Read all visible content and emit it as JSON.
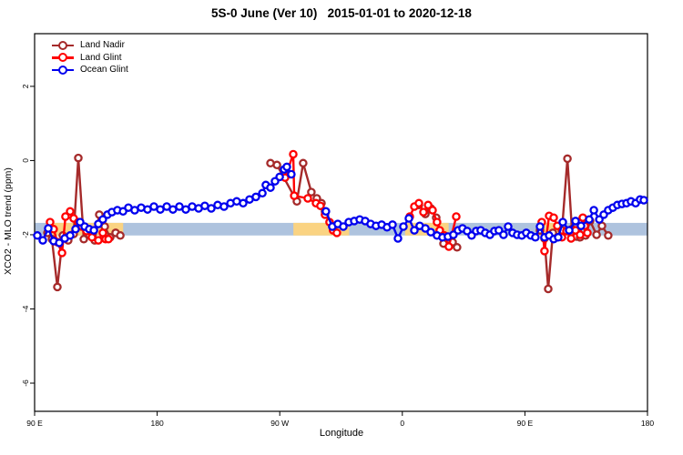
{
  "chart_data": {
    "type": "line",
    "title": "5S-0 June (Ver 10)   2015-01-01 to 2020-12-18",
    "xlabel": "Longitude",
    "ylabel": "XCO2 - MLO trend (ppm)",
    "xlim": [
      0,
      450
    ],
    "ylim": [
      -6.76,
      3.42
    ],
    "grid": "off",
    "legend_position": "top-left",
    "x_ticks": [
      {
        "pos": 0,
        "label": "90 E"
      },
      {
        "pos": 90,
        "label": "180"
      },
      {
        "pos": 180,
        "label": "90 W"
      },
      {
        "pos": 270,
        "label": "0"
      },
      {
        "pos": 360,
        "label": "90 E"
      },
      {
        "pos": 450,
        "label": "180"
      }
    ],
    "y_ticks": [
      2,
      0,
      -2,
      -4,
      -6
    ],
    "hline_band": {
      "y_from": -1.68,
      "y_to": -2.02,
      "color": "#AEC3DE",
      "note": "ocean reference band"
    },
    "band_overlay_color": "#FAD382",
    "band_overlays": [
      {
        "x_from": 10,
        "x_to": 65
      },
      {
        "x_from": 190,
        "x_to": 231
      },
      {
        "x_from": 272,
        "x_to": 304
      },
      {
        "x_from": 369,
        "x_to": 386
      }
    ],
    "series": [
      {
        "name": "Land Nadir",
        "color": "#A52A2A",
        "marker": "open-circle",
        "segments": [
          [
            [
              9.4,
              -1.95
            ],
            [
              12.7,
              -2.12
            ],
            [
              16.7,
              -3.41
            ],
            [
              20.7,
              -2.02
            ],
            [
              24.7,
              -2.15
            ],
            [
              28.7,
              -1.98
            ],
            [
              32.1,
              0.07
            ],
            [
              36.1,
              -2.12
            ],
            [
              40.1,
              -2.0
            ],
            [
              44.1,
              -2.15
            ],
            [
              47.5,
              -1.46
            ],
            [
              51.5,
              -1.78
            ],
            [
              55.5,
              -2.07
            ],
            [
              59.5,
              -1.95
            ],
            [
              62.9,
              -2.02
            ]
          ],
          [
            [
              173.2,
              -0.07
            ],
            [
              177.9,
              -0.12
            ],
            [
              192.6,
              -1.1
            ],
            [
              197.2,
              -0.07
            ],
            [
              203.2,
              -0.85
            ],
            [
              207.2,
              -1.02
            ],
            [
              210.6,
              -1.15
            ],
            [
              213.2,
              -1.37
            ]
          ],
          [
            [
              282.2,
              -1.2
            ],
            [
              286.9,
              -1.44
            ],
            [
              290.9,
              -1.29
            ],
            [
              294.9,
              -1.54
            ],
            [
              300.2,
              -2.24
            ],
            [
              306.9,
              -2.2
            ],
            [
              310.2,
              -2.34
            ]
          ],
          [
            [
              371.1,
              -1.88
            ],
            [
              374.4,
              -2.1
            ],
            [
              377.1,
              -3.46
            ],
            [
              380.5,
              -1.95
            ],
            [
              383.8,
              -2.07
            ],
            [
              387.2,
              -1.88
            ],
            [
              391.2,
              0.05
            ],
            [
              394.5,
              -1.85
            ],
            [
              397.9,
              -2.05
            ],
            [
              400.5,
              -2.07
            ],
            [
              404.5,
              -2.02
            ],
            [
              407.9,
              -1.63
            ],
            [
              412.6,
              -2.0
            ],
            [
              416.6,
              -1.76
            ],
            [
              421.2,
              -2.02
            ]
          ]
        ]
      },
      {
        "name": "Land Glint",
        "color": "#FF0000",
        "marker": "open-circle",
        "segments": [
          [
            [
              11.4,
              -1.66
            ],
            [
              14.0,
              -1.85
            ],
            [
              16.7,
              -2.2
            ],
            [
              20.1,
              -2.49
            ],
            [
              22.7,
              -1.51
            ],
            [
              26.1,
              -1.37
            ],
            [
              28.7,
              -1.56
            ],
            [
              32.1,
              -1.66
            ],
            [
              34.8,
              -1.78
            ],
            [
              38.1,
              -1.9
            ],
            [
              42.1,
              -2.07
            ],
            [
              46.8,
              -2.15
            ],
            [
              50.1,
              -1.95
            ],
            [
              52.1,
              -2.12
            ],
            [
              54.2,
              -2.12
            ]
          ],
          [
            [
              183.9,
              -0.46
            ],
            [
              189.9,
              0.17
            ],
            [
              190.6,
              -0.95
            ],
            [
              200.6,
              -1.02
            ],
            [
              206.6,
              -1.15
            ],
            [
              209.9,
              -1.22
            ],
            [
              213.2,
              -1.46
            ],
            [
              216.6,
              -1.66
            ],
            [
              219.2,
              -1.88
            ],
            [
              221.9,
              -1.95
            ]
          ],
          [
            [
              275.5,
              -1.51
            ],
            [
              278.8,
              -1.24
            ],
            [
              282.2,
              -1.15
            ],
            [
              285.5,
              -1.39
            ],
            [
              288.9,
              -1.2
            ],
            [
              292.2,
              -1.34
            ],
            [
              295.5,
              -1.66
            ],
            [
              297.5,
              -1.88
            ],
            [
              300.9,
              -2.02
            ],
            [
              304.2,
              -2.32
            ],
            [
              309.6,
              -1.51
            ]
          ],
          [
            [
              372.4,
              -1.66
            ],
            [
              374.4,
              -2.44
            ],
            [
              377.8,
              -1.49
            ],
            [
              381.1,
              -1.54
            ],
            [
              383.8,
              -1.76
            ],
            [
              387.2,
              -2.07
            ],
            [
              390.5,
              -1.9
            ],
            [
              393.9,
              -2.1
            ],
            [
              397.2,
              -1.88
            ],
            [
              400.5,
              -2.0
            ],
            [
              402.5,
              -1.54
            ],
            [
              403.9,
              -1.76
            ],
            [
              405.9,
              -1.95
            ]
          ]
        ]
      },
      {
        "name": "Ocean Glint",
        "color": "#0000EE",
        "marker": "open-circle",
        "segments": [
          [
            [
              2,
              -2.02
            ],
            [
              6,
              -2.15
            ],
            [
              10,
              -1.83
            ],
            [
              14,
              -2.17
            ],
            [
              18.1,
              -2.22
            ],
            [
              22.1,
              -2.1
            ],
            [
              26.1,
              -2.02
            ],
            [
              30.1,
              -1.85
            ],
            [
              33.4,
              -1.66
            ],
            [
              36.8,
              -1.78
            ],
            [
              40.1,
              -1.85
            ],
            [
              43.5,
              -1.88
            ],
            [
              46.8,
              -1.71
            ],
            [
              50.1,
              -1.59
            ],
            [
              53.5,
              -1.46
            ],
            [
              56.8,
              -1.39
            ],
            [
              60.8,
              -1.34
            ],
            [
              64.9,
              -1.37
            ],
            [
              68.9,
              -1.27
            ],
            [
              73.5,
              -1.34
            ],
            [
              78.2,
              -1.27
            ],
            [
              82.9,
              -1.32
            ],
            [
              87.6,
              -1.24
            ],
            [
              92.3,
              -1.32
            ],
            [
              97,
              -1.24
            ],
            [
              101.6,
              -1.32
            ],
            [
              106.3,
              -1.24
            ],
            [
              111,
              -1.32
            ],
            [
              115.7,
              -1.24
            ],
            [
              120.4,
              -1.29
            ],
            [
              125,
              -1.22
            ],
            [
              129.7,
              -1.29
            ],
            [
              134.4,
              -1.2
            ],
            [
              139.1,
              -1.24
            ],
            [
              143.8,
              -1.15
            ],
            [
              148.4,
              -1.1
            ],
            [
              153.1,
              -1.15
            ],
            [
              157.8,
              -1.05
            ],
            [
              162.5,
              -0.98
            ],
            [
              167.2,
              -0.88
            ],
            [
              169.8,
              -0.66
            ],
            [
              173.2,
              -0.73
            ],
            [
              176.5,
              -0.56
            ],
            [
              179.9,
              -0.44
            ],
            [
              183.2,
              -0.24
            ],
            [
              185.2,
              -0.17
            ],
            [
              188.5,
              -0.37
            ]
          ],
          [
            [
              213.9,
              -1.37
            ],
            [
              218.6,
              -1.78
            ],
            [
              222.6,
              -1.71
            ],
            [
              226.7,
              -1.78
            ],
            [
              230.7,
              -1.66
            ],
            [
              234.7,
              -1.63
            ],
            [
              238.7,
              -1.59
            ],
            [
              242.7,
              -1.63
            ],
            [
              246.7,
              -1.71
            ],
            [
              250.7,
              -1.76
            ],
            [
              254.8,
              -1.73
            ],
            [
              258.8,
              -1.8
            ],
            [
              262.8,
              -1.73
            ],
            [
              266.8,
              -2.1
            ],
            [
              270.8,
              -1.78
            ],
            [
              274.8,
              -1.56
            ],
            [
              278.8,
              -1.88
            ],
            [
              282.8,
              -1.76
            ],
            [
              286.9,
              -1.83
            ],
            [
              290.9,
              -1.93
            ],
            [
              295.5,
              -2.02
            ],
            [
              299.5,
              -2.07
            ],
            [
              303.5,
              -2.05
            ],
            [
              307.5,
              -2.0
            ],
            [
              310.9,
              -1.88
            ],
            [
              314.2,
              -1.83
            ],
            [
              317.6,
              -1.9
            ],
            [
              320.9,
              -2.02
            ],
            [
              324.2,
              -1.9
            ],
            [
              327.6,
              -1.88
            ],
            [
              330.9,
              -1.95
            ],
            [
              334.3,
              -2.0
            ],
            [
              337.6,
              -1.9
            ],
            [
              340.9,
              -1.88
            ],
            [
              344.3,
              -2.0
            ],
            [
              347.7,
              -1.78
            ],
            [
              351,
              -1.95
            ],
            [
              354.3,
              -2.0
            ],
            [
              357.7,
              -2.02
            ],
            [
              361,
              -1.95
            ],
            [
              364.4,
              -2.02
            ],
            [
              367.7,
              -2.07
            ],
            [
              371.1,
              -1.78
            ],
            [
              374.4,
              -2.07
            ],
            [
              377.8,
              -2.02
            ],
            [
              381.1,
              -2.12
            ],
            [
              384.5,
              -2.07
            ],
            [
              387.8,
              -1.66
            ],
            [
              392.5,
              -1.88
            ],
            [
              397.2,
              -1.63
            ],
            [
              401.2,
              -1.76
            ],
            [
              407.2,
              -1.59
            ],
            [
              410.6,
              -1.34
            ],
            [
              414.6,
              -1.59
            ],
            [
              417.9,
              -1.46
            ],
            [
              421.2,
              -1.34
            ],
            [
              424.6,
              -1.27
            ],
            [
              427.9,
              -1.2
            ],
            [
              431.3,
              -1.17
            ],
            [
              434.6,
              -1.15
            ],
            [
              437.9,
              -1.1
            ],
            [
              441.3,
              -1.15
            ],
            [
              444.6,
              -1.05
            ],
            [
              447.3,
              -1.07
            ]
          ]
        ]
      }
    ],
    "legend": {
      "items": [
        "Land Nadir",
        "Land Glint",
        "Ocean Glint"
      ]
    }
  }
}
